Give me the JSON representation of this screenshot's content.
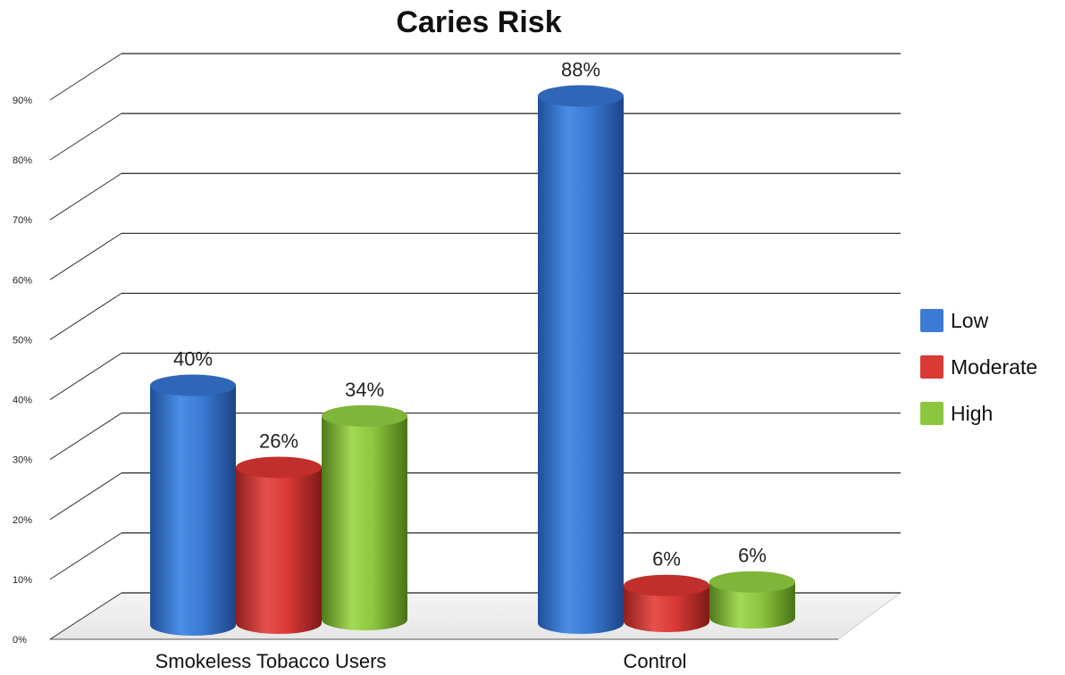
{
  "chart_data": {
    "type": "bar",
    "title": "Caries Risk",
    "categories": [
      "Smokeless Tobacco Users",
      "Control"
    ],
    "series": [
      {
        "name": "Low",
        "values": [
          40,
          88
        ],
        "color": "#3a7bd5"
      },
      {
        "name": "Moderate",
        "values": [
          26,
          6
        ],
        "color": "#d93a36"
      },
      {
        "name": "High",
        "values": [
          34,
          6
        ],
        "color": "#8cc63f"
      }
    ],
    "data_labels": [
      [
        "40%",
        "88%"
      ],
      [
        "26%",
        "6%"
      ],
      [
        "34%",
        "6%"
      ]
    ],
    "y_ticks": [
      "0%",
      "10%",
      "20%",
      "30%",
      "40%",
      "50%",
      "60%",
      "70%",
      "80%",
      "90%"
    ],
    "ylim": [
      0,
      90
    ],
    "grid": true,
    "legend_position": "right",
    "style": "3d-cylinder"
  }
}
